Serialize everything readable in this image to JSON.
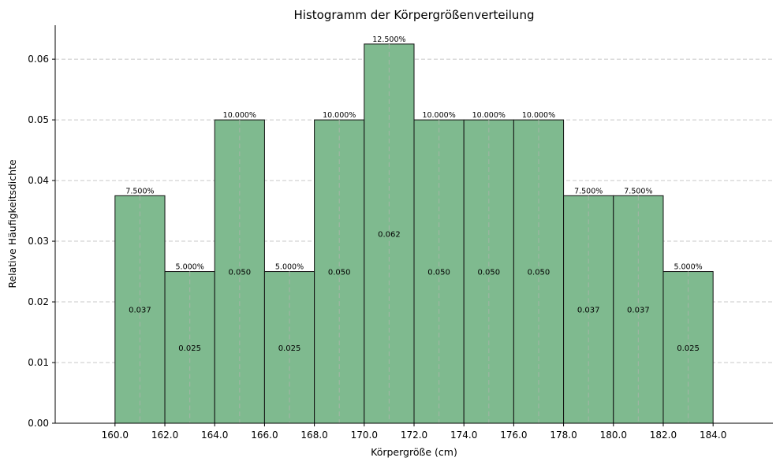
{
  "chart_data": {
    "type": "bar",
    "title": "Histogramm der Körpergrößenverteilung",
    "xlabel": "Körpergröße (cm)",
    "ylabel": "Relative Häufigkeitsdichte",
    "bin_edges": [
      160,
      162,
      164,
      166,
      168,
      170,
      172,
      174,
      176,
      178,
      180,
      182,
      184
    ],
    "values": [
      0.0375,
      0.025,
      0.05,
      0.025,
      0.05,
      0.0625,
      0.05,
      0.05,
      0.05,
      0.0375,
      0.0375,
      0.025
    ],
    "top_labels": [
      "7.500%",
      "5.000%",
      "10.000%",
      "5.000%",
      "10.000%",
      "12.500%",
      "10.000%",
      "10.000%",
      "10.000%",
      "7.500%",
      "7.500%",
      "5.000%"
    ],
    "mid_labels": [
      "0.037",
      "0.025",
      "0.050",
      "0.025",
      "0.050",
      "0.062",
      "0.050",
      "0.050",
      "0.050",
      "0.037",
      "0.037",
      "0.025"
    ],
    "x_ticks": [
      "160.0",
      "162.0",
      "164.0",
      "166.0",
      "168.0",
      "170.0",
      "172.0",
      "174.0",
      "176.0",
      "178.0",
      "180.0",
      "182.0",
      "184.0"
    ],
    "y_ticks": [
      "0.00",
      "0.01",
      "0.02",
      "0.03",
      "0.04",
      "0.05",
      "0.06"
    ],
    "xlim": [
      157.6,
      186.4
    ],
    "ylim": [
      0,
      0.0656
    ],
    "grid": "y-dashed",
    "colors": {
      "bar_fill": "#7fba8f",
      "bar_edge": "#111111",
      "grid": "#c8c8c8",
      "center_line": "#9fb5a3"
    }
  }
}
